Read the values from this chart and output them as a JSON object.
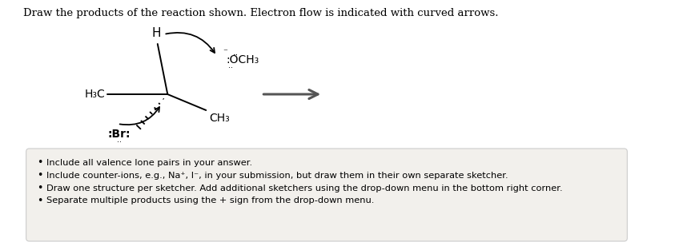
{
  "title_text": "Draw the products of the reaction shown. Electron flow is indicated with curved arrows.",
  "title_fontsize": 9.5,
  "title_color": "#000000",
  "bg_color": "#ffffff",
  "box_bg_color": "#f2f0ec",
  "box_edge_color": "#cccccc",
  "bullet_points": [
    "Include all valence lone pairs in your answer.",
    "Include counter-ions, e.g., Na⁺, I⁻, in your submission, but draw them in their own separate sketcher.",
    "Draw one structure per sketcher. Add additional sketchers using the drop-down menu in the bottom right corner.",
    "Separate multiple products using the + sign from the drop-down menu."
  ],
  "bullet_fontsize": 8.2,
  "arrow_color": "#555555",
  "bond_color": "#000000",
  "bond_lw": 1.4
}
